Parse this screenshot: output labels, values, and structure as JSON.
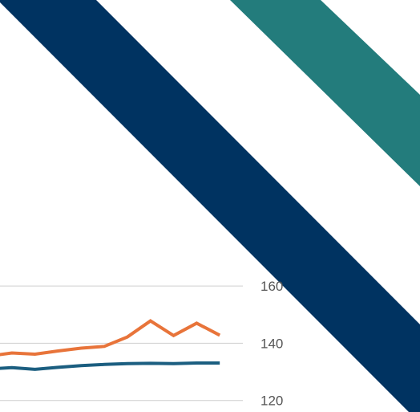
{
  "colors": {
    "background": "#ffffff",
    "navy_band": "#003361",
    "teal_band": "#237c7c",
    "gridline": "#cfcfcf",
    "tick_text": "#555555"
  },
  "chart_data": {
    "type": "line",
    "title": "",
    "xlabel": "",
    "ylabel": "",
    "y_axis_position": "right",
    "yticks": [
      "160",
      "140",
      "120"
    ],
    "ylim": [
      116,
      176
    ],
    "grid": true,
    "legend": "none",
    "x": [
      0,
      1,
      2,
      3,
      4,
      5,
      6,
      7,
      8,
      9,
      10,
      11
    ],
    "series": [
      {
        "color": "#e8743a",
        "values": [
          135.5,
          136.6,
          136.2,
          137.3,
          138.3,
          138.9,
          142.2,
          147.8,
          142.7,
          147.0,
          142.8,
          null
        ]
      },
      {
        "color": "#1b5e80",
        "values": [
          131.0,
          131.5,
          130.9,
          131.6,
          132.2,
          132.6,
          132.9,
          133.0,
          132.9,
          133.1,
          133.1,
          null
        ]
      }
    ]
  }
}
